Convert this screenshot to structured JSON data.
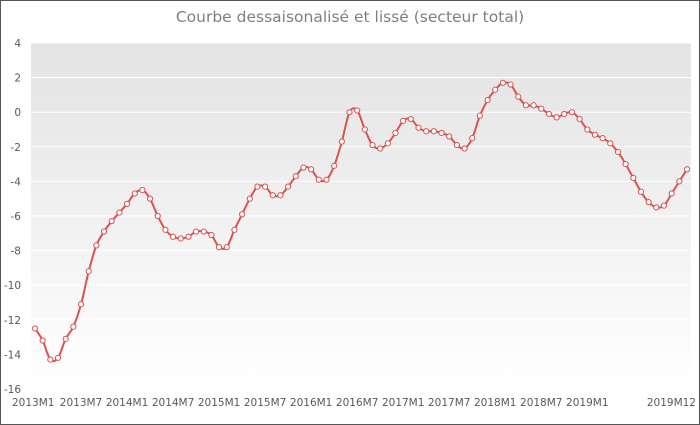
{
  "chart_data": {
    "type": "line",
    "title": "Courbe dessaisonalisé et lissé (secteur total)",
    "xlabel": "",
    "ylabel": "",
    "ylim": [
      -16,
      4
    ],
    "yticks": [
      4,
      2,
      0,
      -2,
      -4,
      -6,
      -8,
      -10,
      -12,
      -14,
      -16
    ],
    "grid": true,
    "legend": "none",
    "colors": {
      "line": "#d9534f",
      "plot_top": "#e3e3e3",
      "plot_bottom": "#ffffff"
    },
    "x_tick_labels": [
      {
        "index": 0,
        "label": "2013M1"
      },
      {
        "index": 6,
        "label": "2013M7"
      },
      {
        "index": 12,
        "label": "2014M1"
      },
      {
        "index": 18,
        "label": "2014M7"
      },
      {
        "index": 24,
        "label": "2015M1"
      },
      {
        "index": 30,
        "label": "2015M7"
      },
      {
        "index": 36,
        "label": "2016M1"
      },
      {
        "index": 42,
        "label": "2016M7"
      },
      {
        "index": 48,
        "label": "2017M1"
      },
      {
        "index": 54,
        "label": "2017M7"
      },
      {
        "index": 60,
        "label": "2018M1"
      },
      {
        "index": 66,
        "label": "2018M7"
      },
      {
        "index": 72,
        "label": "2019M1"
      },
      {
        "index": 83,
        "label": "2019M12"
      }
    ],
    "series": [
      {
        "values": [
          -12.5,
          -13.2,
          -14.3,
          -14.2,
          -13.1,
          -12.4,
          -11.1,
          -9.2,
          -7.7,
          -6.9,
          -6.3,
          -5.8,
          -5.3,
          -4.7,
          -4.5,
          -5.0,
          -6.0,
          -6.8,
          -7.2,
          -7.3,
          -7.2,
          -6.9,
          -6.9,
          -7.1,
          -7.8,
          -7.8,
          -6.8,
          -5.9,
          -5.0,
          -4.3,
          -4.3,
          -4.8,
          -4.8,
          -4.3,
          -3.7,
          -3.2,
          -3.3,
          -3.9,
          -3.9,
          -3.1,
          -1.7,
          0.0,
          0.1,
          -1.0,
          -1.9,
          -2.1,
          -1.8,
          -1.2,
          -0.5,
          -0.4,
          -0.9,
          -1.1,
          -1.1,
          -1.2,
          -1.4,
          -1.9,
          -2.1,
          -1.5,
          -0.2,
          0.7,
          1.3,
          1.7,
          1.6,
          0.9,
          0.4,
          0.4,
          0.2,
          -0.1,
          -0.3,
          -0.1,
          0.0,
          -0.4,
          -1.0,
          -1.3,
          -1.5,
          -1.8,
          -2.3,
          -3.0,
          -3.8,
          -4.6,
          -5.2,
          -5.5,
          -5.4,
          -4.7,
          -4.0,
          -3.3
        ]
      }
    ]
  }
}
